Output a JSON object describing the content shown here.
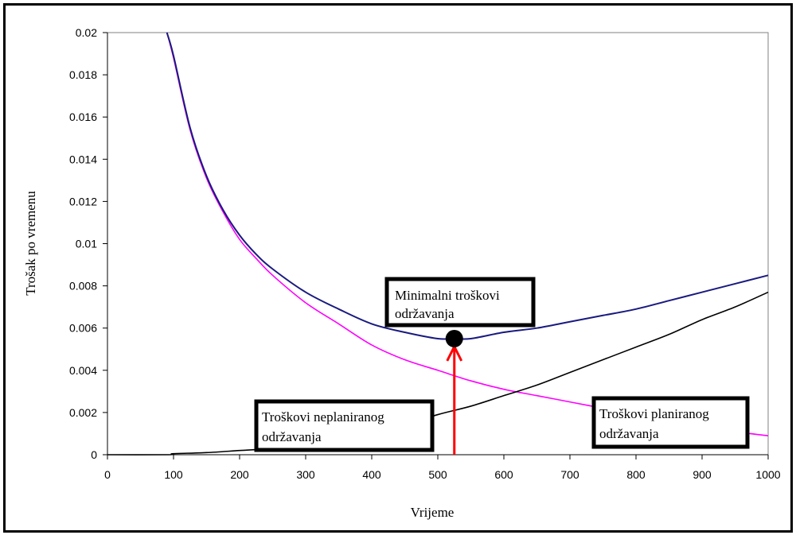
{
  "chart_data": {
    "type": "line",
    "title": "",
    "xlabel": "Vrijeme",
    "ylabel": "Trošak po vremenu",
    "xlim": [
      0,
      1000
    ],
    "ylim": [
      0,
      0.02
    ],
    "x_ticks": [
      "0",
      "100",
      "200",
      "300",
      "400",
      "500",
      "600",
      "700",
      "800",
      "900",
      "1000"
    ],
    "y_ticks": [
      "0",
      "0.002",
      "0.004",
      "0.006",
      "0.008",
      "0.01",
      "0.012",
      "0.014",
      "0.016",
      "0.018",
      "0.02"
    ],
    "grid": false,
    "series": [
      {
        "color": "#ff00ff",
        "x": [
          90,
          100,
          125,
          150,
          175,
          200,
          225,
          250,
          300,
          350,
          400,
          450,
          500,
          550,
          600,
          650,
          700,
          750,
          800,
          850,
          900,
          950,
          1000
        ],
        "values": [
          0.0203,
          0.0188,
          0.0154,
          0.0131,
          0.0115,
          0.0102,
          0.0093,
          0.0085,
          0.0072,
          0.0062,
          0.0052,
          0.0045,
          0.004,
          0.0035,
          0.0031,
          0.0028,
          0.0025,
          0.0022,
          0.0019,
          0.0016,
          0.0014,
          0.0011,
          0.0009
        ]
      },
      {
        "color": "#000000",
        "x": [
          0,
          90,
          100,
          150,
          200,
          250,
          300,
          350,
          400,
          450,
          500,
          550,
          600,
          650,
          700,
          750,
          800,
          850,
          900,
          950,
          1000
        ],
        "values": [
          0,
          0,
          5e-05,
          0.0001,
          0.0002,
          0.0003,
          0.0005,
          0.0007,
          0.001,
          0.0014,
          0.0019,
          0.0023,
          0.0028,
          0.0033,
          0.0039,
          0.0045,
          0.0051,
          0.0057,
          0.0064,
          0.007,
          0.0077
        ]
      },
      {
        "color": "#1a1a80",
        "x": [
          90,
          100,
          125,
          150,
          175,
          200,
          225,
          250,
          300,
          350,
          400,
          450,
          500,
          525,
          550,
          600,
          650,
          700,
          750,
          800,
          850,
          900,
          950,
          1000
        ],
        "values": [
          0.0203,
          0.0189,
          0.0155,
          0.0132,
          0.0116,
          0.0104,
          0.0095,
          0.0088,
          0.0077,
          0.0069,
          0.0062,
          0.0058,
          0.0055,
          0.0055,
          0.0055,
          0.0058,
          0.006,
          0.0063,
          0.0066,
          0.0069,
          0.0073,
          0.0077,
          0.0081,
          0.0085
        ]
      }
    ],
    "annotations": [
      {
        "text_line1": "Minimalni troškovi",
        "text_line2": "održavanja",
        "x": 525,
        "y": 0.0055
      },
      {
        "text_line1": "Troškovi neplaniranog",
        "text_line2": "održavanja"
      },
      {
        "text_line1": "Troškovi planiranog",
        "text_line2": "održavanja"
      }
    ],
    "minimum_marker": {
      "x": 525,
      "y": 0.0055,
      "arrow_color": "#ff0000"
    }
  }
}
